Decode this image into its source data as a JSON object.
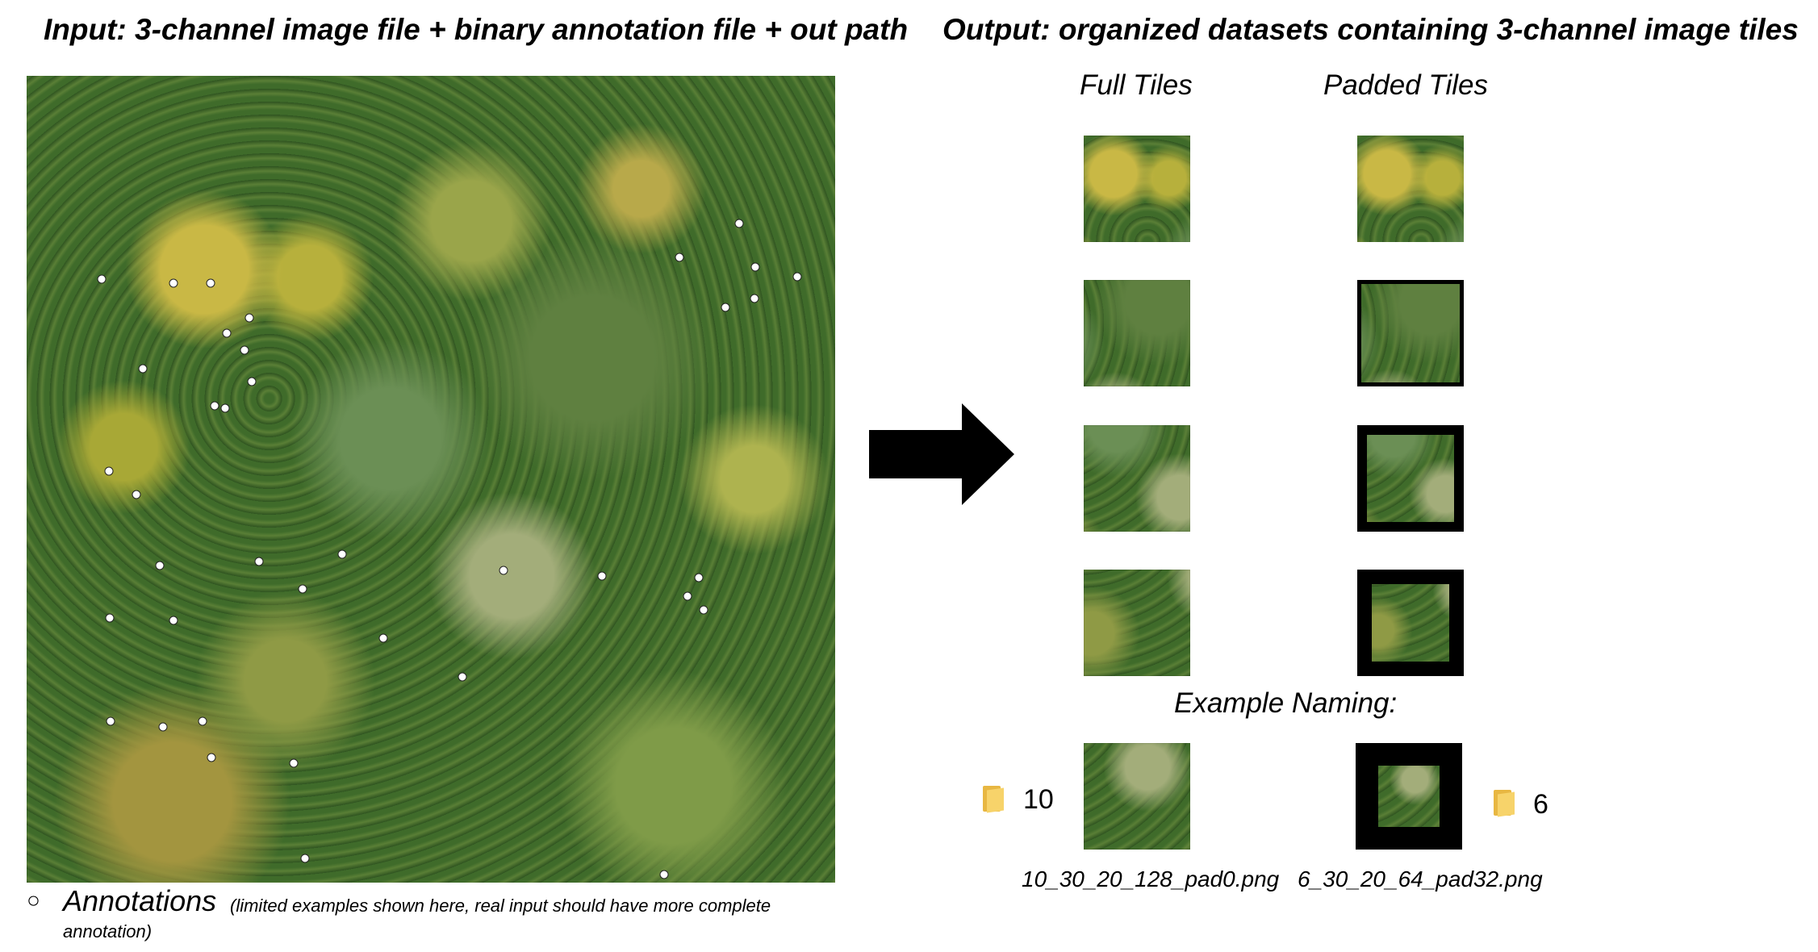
{
  "header": {
    "input": "Input:  3-channel image file + binary annotation file + out path",
    "output": "Output:  organized datasets containing 3-channel image tiles"
  },
  "columns": {
    "full": "Full Tiles",
    "padded": "Padded Tiles"
  },
  "legend": {
    "marker": "○",
    "label": "Annotations",
    "note": "(limited examples shown here, real input should have more complete",
    "note2": "annotation)"
  },
  "naming": {
    "title": "Example Naming:",
    "full_folder": "10",
    "padded_folder": "6",
    "full_filename": "10_30_20_128_pad0.png",
    "padded_filename": "6_30_20_64_pad32.png"
  },
  "colors": {
    "arrow": "#000000",
    "annotation_fill": "#ffffff",
    "pad": "#000000",
    "folder": "#f7d36a"
  }
}
